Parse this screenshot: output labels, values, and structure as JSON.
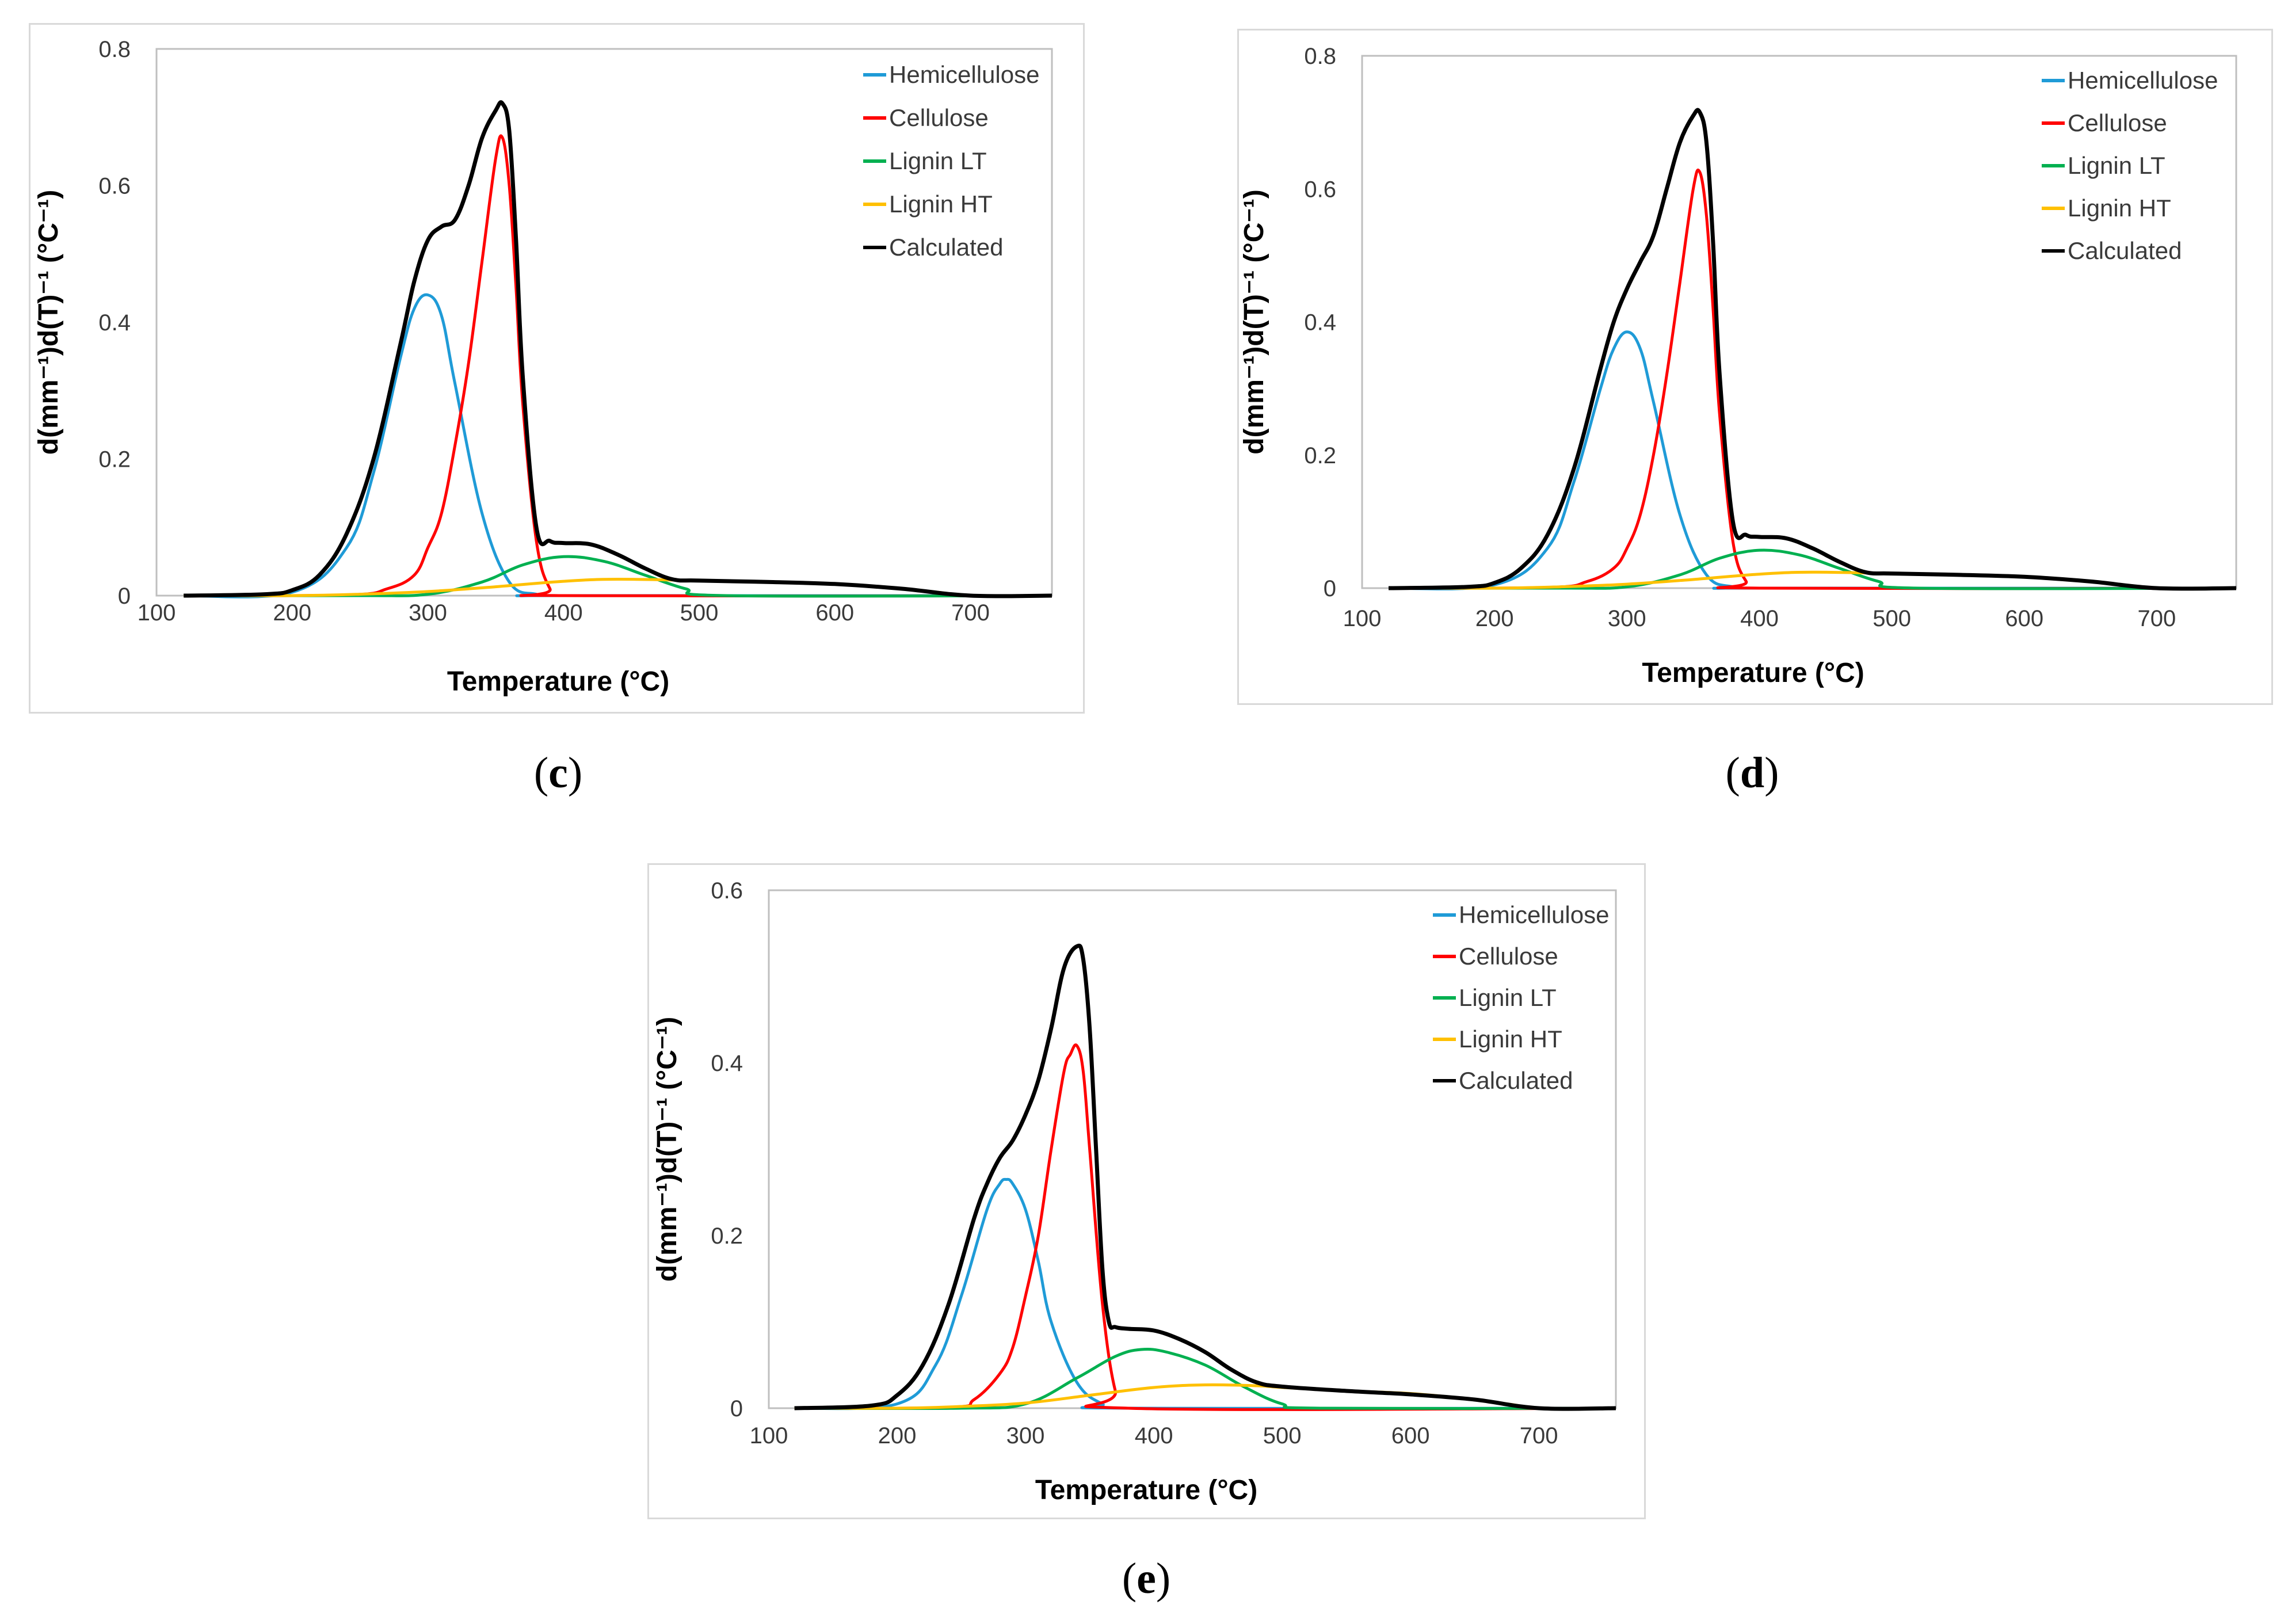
{
  "chart_data": [
    {
      "panel": "c",
      "type": "line",
      "xlabel": "Temperature (°C)",
      "ylabel": "d(mm⁻¹)d(T)⁻¹ (°C⁻¹)",
      "xlim": [
        100,
        760
      ],
      "ylim": [
        0,
        0.8
      ],
      "xticks": [
        100,
        200,
        300,
        400,
        500,
        600,
        700
      ],
      "yticks": [
        0,
        0.2,
        0.4,
        0.6,
        0.8
      ],
      "ytick_labels": [
        "0",
        "0.2",
        "0.4",
        "0.6",
        "0.8"
      ],
      "legend_position": "top-right",
      "series": [
        {
          "name": "Hemicellulose",
          "color": "#1f9bd7",
          "x": [
            120,
            200,
            240,
            260,
            280,
            290,
            300,
            310,
            320,
            340,
            360,
            380,
            400,
            760
          ],
          "y": [
            0,
            0.005,
            0.07,
            0.18,
            0.35,
            0.42,
            0.44,
            0.41,
            0.31,
            0.12,
            0.02,
            0.002,
            0,
            0
          ]
        },
        {
          "name": "Cellulose",
          "color": "#ff0000",
          "x": [
            120,
            240,
            270,
            290,
            300,
            310,
            320,
            330,
            340,
            350,
            355,
            360,
            365,
            370,
            380,
            390,
            400,
            760
          ],
          "y": [
            0,
            0.001,
            0.01,
            0.03,
            0.07,
            0.12,
            0.22,
            0.34,
            0.49,
            0.64,
            0.67,
            0.6,
            0.45,
            0.28,
            0.08,
            0.01,
            0,
            0
          ]
        },
        {
          "name": "Lignin LT",
          "color": "#00b050",
          "x": [
            120,
            250,
            300,
            340,
            370,
            400,
            430,
            460,
            490,
            520,
            760
          ],
          "y": [
            0,
            0,
            0.002,
            0.02,
            0.045,
            0.057,
            0.05,
            0.03,
            0.01,
            0,
            0
          ]
        },
        {
          "name": "Lignin HT",
          "color": "#ffc000",
          "x": [
            120,
            200,
            250,
            300,
            350,
            400,
            440,
            500,
            550,
            600,
            650,
            680,
            700,
            760
          ],
          "y": [
            0,
            0,
            0.002,
            0.006,
            0.013,
            0.021,
            0.024,
            0.022,
            0.02,
            0.017,
            0.01,
            0.004,
            0,
            0
          ]
        },
        {
          "name": "Calculated",
          "color": "#000000",
          "x": [
            120,
            180,
            200,
            220,
            240,
            260,
            280,
            290,
            300,
            310,
            320,
            330,
            340,
            350,
            355,
            360,
            365,
            370,
            380,
            390,
            400,
            420,
            440,
            460,
            480,
            500,
            550,
            600,
            650,
            700,
            760
          ],
          "y": [
            0,
            0.002,
            0.008,
            0.03,
            0.09,
            0.2,
            0.37,
            0.46,
            0.52,
            0.54,
            0.55,
            0.6,
            0.67,
            0.71,
            0.72,
            0.68,
            0.52,
            0.32,
            0.1,
            0.08,
            0.077,
            0.075,
            0.06,
            0.04,
            0.024,
            0.022,
            0.02,
            0.017,
            0.01,
            0,
            0
          ]
        }
      ]
    },
    {
      "panel": "d",
      "type": "line",
      "xlabel": "Temperature (°C)",
      "ylabel": "d(mm⁻¹)d(T)⁻¹ (°C⁻¹)",
      "xlim": [
        100,
        760
      ],
      "ylim": [
        0,
        0.8
      ],
      "xticks": [
        100,
        200,
        300,
        400,
        500,
        600,
        700
      ],
      "yticks": [
        0,
        0.2,
        0.4,
        0.6,
        0.8
      ],
      "ytick_labels": [
        "0",
        "0.2",
        "0.4",
        "0.6",
        "0.8"
      ],
      "legend_position": "top-right",
      "series": [
        {
          "name": "Hemicellulose",
          "color": "#1f9bd7",
          "x": [
            120,
            200,
            240,
            260,
            280,
            290,
            300,
            310,
            320,
            340,
            360,
            380,
            400,
            760
          ],
          "y": [
            0,
            0.005,
            0.06,
            0.16,
            0.3,
            0.36,
            0.385,
            0.36,
            0.28,
            0.11,
            0.02,
            0.002,
            0,
            0
          ]
        },
        {
          "name": "Cellulose",
          "color": "#ff0000",
          "x": [
            120,
            240,
            270,
            290,
            300,
            310,
            320,
            330,
            340,
            350,
            355,
            360,
            365,
            370,
            380,
            390,
            400,
            760
          ],
          "y": [
            0,
            0.001,
            0.01,
            0.03,
            0.06,
            0.11,
            0.2,
            0.32,
            0.46,
            0.6,
            0.625,
            0.56,
            0.42,
            0.26,
            0.07,
            0.01,
            0,
            0
          ]
        },
        {
          "name": "Lignin LT",
          "color": "#00b050",
          "x": [
            120,
            250,
            300,
            340,
            370,
            400,
            430,
            460,
            490,
            520,
            760
          ],
          "y": [
            0,
            0,
            0.002,
            0.02,
            0.045,
            0.057,
            0.05,
            0.03,
            0.01,
            0,
            0
          ]
        },
        {
          "name": "Lignin HT",
          "color": "#ffc000",
          "x": [
            120,
            200,
            250,
            300,
            350,
            400,
            440,
            500,
            550,
            600,
            650,
            680,
            700,
            760
          ],
          "y": [
            0,
            0,
            0.002,
            0.006,
            0.013,
            0.021,
            0.024,
            0.022,
            0.02,
            0.017,
            0.01,
            0.004,
            0,
            0
          ]
        },
        {
          "name": "Calculated",
          "color": "#000000",
          "x": [
            120,
            180,
            200,
            220,
            240,
            260,
            280,
            290,
            300,
            310,
            320,
            330,
            340,
            350,
            355,
            360,
            365,
            370,
            380,
            390,
            400,
            420,
            440,
            460,
            480,
            500,
            550,
            600,
            650,
            700,
            760
          ],
          "y": [
            0,
            0.002,
            0.008,
            0.03,
            0.08,
            0.18,
            0.33,
            0.4,
            0.45,
            0.49,
            0.53,
            0.6,
            0.67,
            0.71,
            0.715,
            0.67,
            0.52,
            0.32,
            0.1,
            0.08,
            0.077,
            0.075,
            0.06,
            0.04,
            0.024,
            0.022,
            0.02,
            0.017,
            0.01,
            0,
            0
          ]
        }
      ]
    },
    {
      "panel": "e",
      "type": "line",
      "xlabel": "Temperature (°C)",
      "ylabel": "d(mm⁻¹)d(T)⁻¹ (°C⁻¹)",
      "xlim": [
        100,
        760
      ],
      "ylim": [
        0,
        0.6
      ],
      "xticks": [
        100,
        200,
        300,
        400,
        500,
        600,
        700
      ],
      "yticks": [
        0,
        0.2,
        0.4,
        0.6
      ],
      "ytick_labels": [
        "0",
        "0.2",
        "0.4",
        "0.6"
      ],
      "legend_position": "top-right",
      "series": [
        {
          "name": "Hemicellulose",
          "color": "#1f9bd7",
          "x": [
            120,
            200,
            230,
            250,
            270,
            280,
            285,
            290,
            300,
            310,
            320,
            340,
            360,
            380,
            760
          ],
          "y": [
            0,
            0.005,
            0.05,
            0.13,
            0.23,
            0.26,
            0.265,
            0.26,
            0.23,
            0.17,
            0.1,
            0.03,
            0.005,
            0,
            0
          ]
        },
        {
          "name": "Cellulose",
          "color": "#ff0000",
          "x": [
            120,
            240,
            260,
            280,
            290,
            300,
            310,
            320,
            330,
            335,
            340,
            345,
            350,
            360,
            370,
            380,
            760
          ],
          "y": [
            0,
            0.001,
            0.01,
            0.04,
            0.07,
            0.13,
            0.2,
            0.3,
            0.39,
            0.41,
            0.42,
            0.39,
            0.3,
            0.12,
            0.02,
            0,
            0
          ]
        },
        {
          "name": "Lignin LT",
          "color": "#00b050",
          "x": [
            120,
            250,
            300,
            340,
            370,
            390,
            410,
            440,
            470,
            500,
            530,
            760
          ],
          "y": [
            0,
            0,
            0.005,
            0.035,
            0.06,
            0.068,
            0.065,
            0.05,
            0.025,
            0.005,
            0,
            0
          ]
        },
        {
          "name": "Lignin HT",
          "color": "#ffc000",
          "x": [
            120,
            200,
            250,
            300,
            350,
            400,
            440,
            480,
            500,
            550,
            600,
            650,
            680,
            700,
            760
          ],
          "y": [
            0,
            0,
            0.002,
            0.006,
            0.015,
            0.024,
            0.027,
            0.026,
            0.024,
            0.02,
            0.017,
            0.01,
            0.004,
            0,
            0
          ]
        },
        {
          "name": "Calculated",
          "color": "#000000",
          "x": [
            120,
            180,
            200,
            220,
            240,
            260,
            270,
            280,
            290,
            300,
            310,
            320,
            330,
            340,
            345,
            350,
            355,
            360,
            365,
            370,
            380,
            400,
            420,
            440,
            460,
            480,
            500,
            550,
            600,
            650,
            700,
            760
          ],
          "y": [
            0,
            0.003,
            0.015,
            0.05,
            0.12,
            0.22,
            0.26,
            0.29,
            0.31,
            0.34,
            0.38,
            0.44,
            0.51,
            0.535,
            0.52,
            0.44,
            0.3,
            0.16,
            0.1,
            0.094,
            0.092,
            0.09,
            0.08,
            0.065,
            0.045,
            0.03,
            0.025,
            0.02,
            0.016,
            0.01,
            0,
            0
          ]
        }
      ]
    }
  ],
  "captions": {
    "c": [
      "(",
      "c",
      ")"
    ],
    "d": [
      "(",
      "d",
      ")"
    ],
    "e": [
      "(",
      "e",
      ")"
    ]
  }
}
